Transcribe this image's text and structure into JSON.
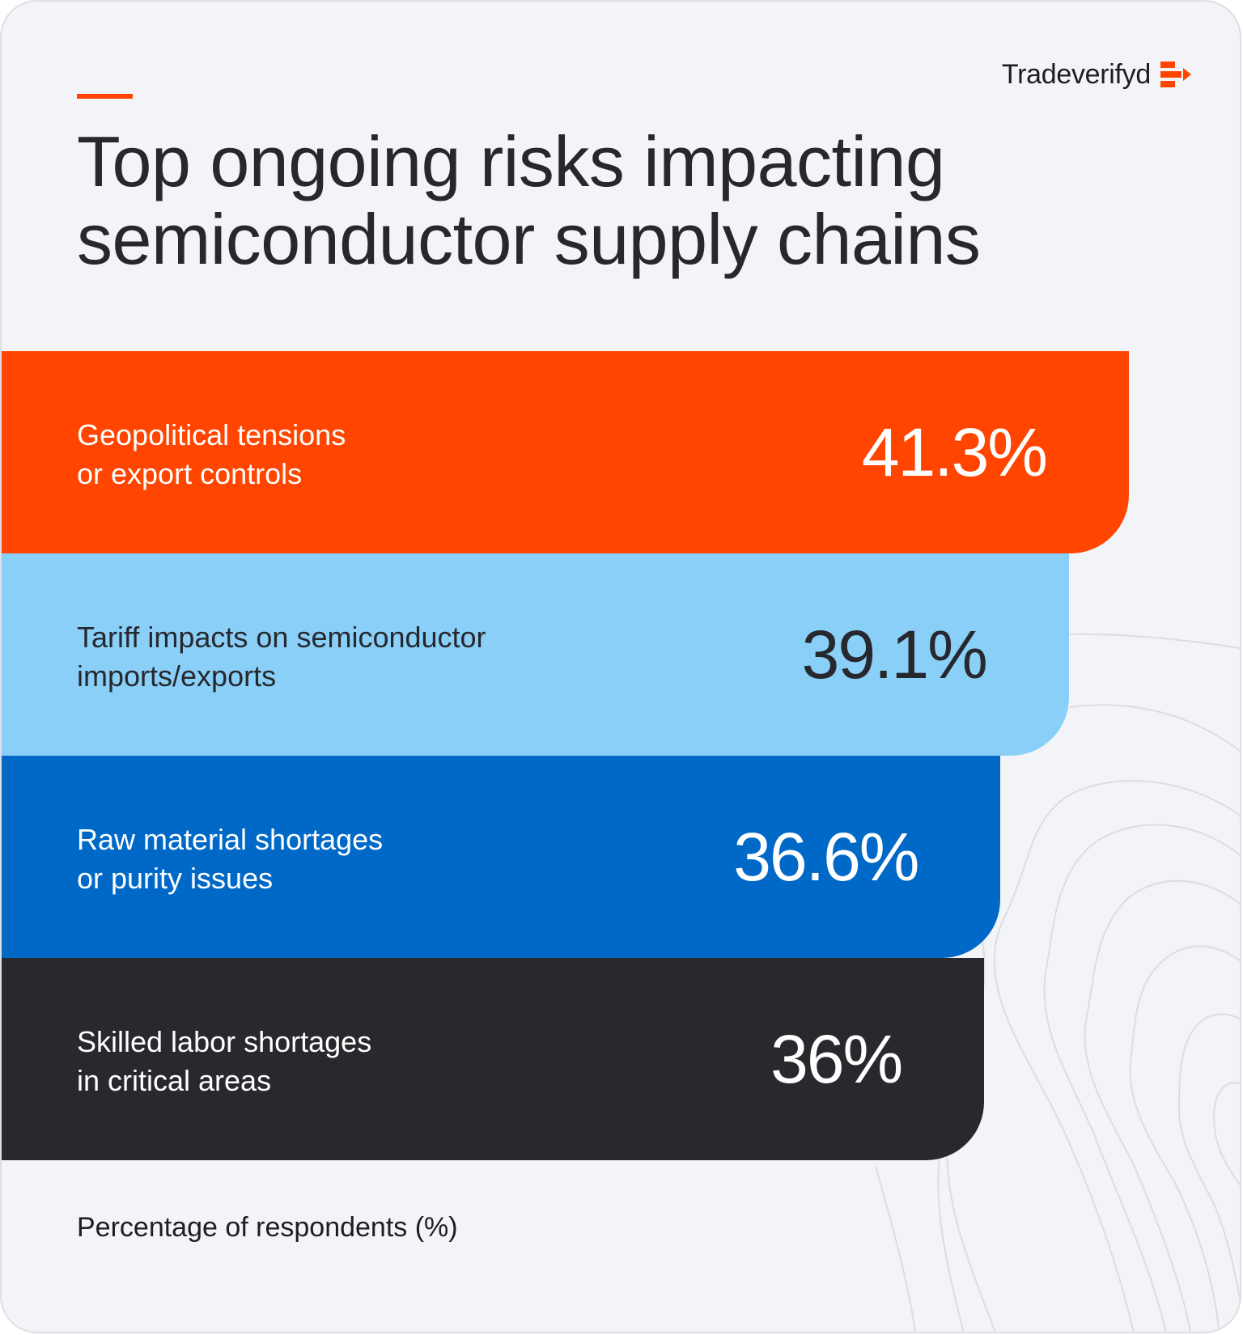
{
  "brand": {
    "name": "Tradeverifyd",
    "accent_color": "#ff4500"
  },
  "title": {
    "line1": "Top ongoing risks impacting",
    "line2": "semiconductor supply chains"
  },
  "chart_data": {
    "type": "bar",
    "orientation": "horizontal",
    "title": "Top ongoing risks impacting semiconductor supply chains",
    "unit": "%",
    "xlabel": "Percentage of respondents (%)",
    "series": [
      {
        "name": "Percentage of respondents",
        "values": [
          41.3,
          39.1,
          36.6,
          36
        ]
      }
    ],
    "bars": [
      {
        "label_line1": "Geopolitical tensions",
        "label_line2": "or export controls",
        "value": 41.3,
        "value_label": "41.3%",
        "color": "#ff4500",
        "text_color": "#ffffff"
      },
      {
        "label_line1": "Tariff impacts on semiconductor",
        "label_line2": "imports/exports",
        "value": 39.1,
        "value_label": "39.1%",
        "color": "#89cff8",
        "text_color": "#27282d"
      },
      {
        "label_line1": "Raw material shortages",
        "label_line2": "or purity issues",
        "value": 36.6,
        "value_label": "36.6%",
        "color": "#0068c6",
        "text_color": "#ffffff"
      },
      {
        "label_line1": "Skilled labor shortages",
        "label_line2": "in critical areas",
        "value": 36,
        "value_label": "36%",
        "color": "#28282d",
        "text_color": "#ffffff"
      }
    ]
  },
  "footnote": "Percentage of respondents (%)"
}
